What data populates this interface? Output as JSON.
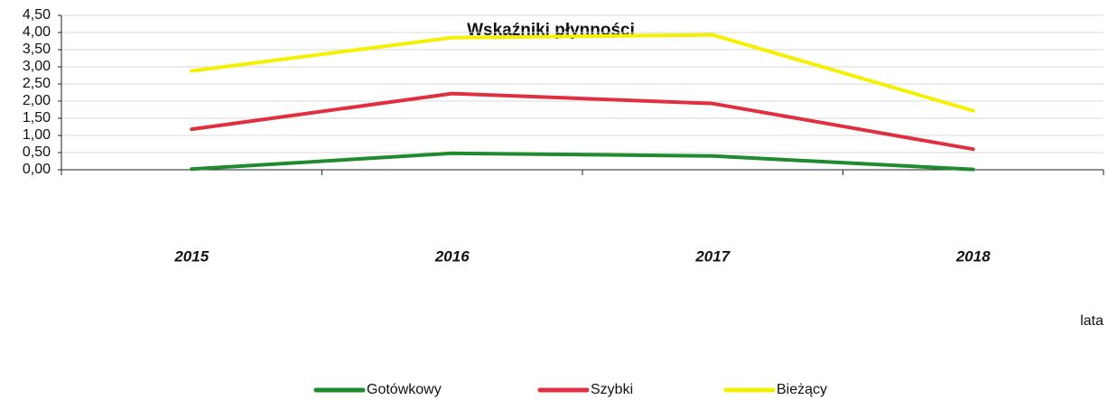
{
  "chart_data": {
    "type": "line",
    "title": "Wskaźniki płynności",
    "x_label": "lata",
    "categories": [
      "2015",
      "2016",
      "2017",
      "2018"
    ],
    "series": [
      {
        "name": "Gotówkowy",
        "color": "#1f8a2e",
        "values": [
          0.02,
          0.48,
          0.4,
          0.01
        ]
      },
      {
        "name": "Szybki",
        "color": "#e0303f",
        "values": [
          1.18,
          2.22,
          1.93,
          0.6
        ]
      },
      {
        "name": "Bieżący",
        "color": "#f4f000",
        "values": [
          2.88,
          3.85,
          3.93,
          1.72
        ]
      }
    ],
    "ylim": [
      0,
      4.5
    ],
    "yticks": [
      {
        "value": 0,
        "label": "0,00"
      },
      {
        "value": 0.5,
        "label": "0,50"
      },
      {
        "value": 1,
        "label": "1,00"
      },
      {
        "value": 1.5,
        "label": "1,50"
      },
      {
        "value": 2,
        "label": "2,00"
      },
      {
        "value": 2.5,
        "label": "2,50"
      },
      {
        "value": 3,
        "label": "3,00"
      },
      {
        "value": 3.5,
        "label": "3,50"
      },
      {
        "value": 4,
        "label": "4,00"
      },
      {
        "value": 4.5,
        "label": "4,50"
      }
    ],
    "grid": true
  }
}
